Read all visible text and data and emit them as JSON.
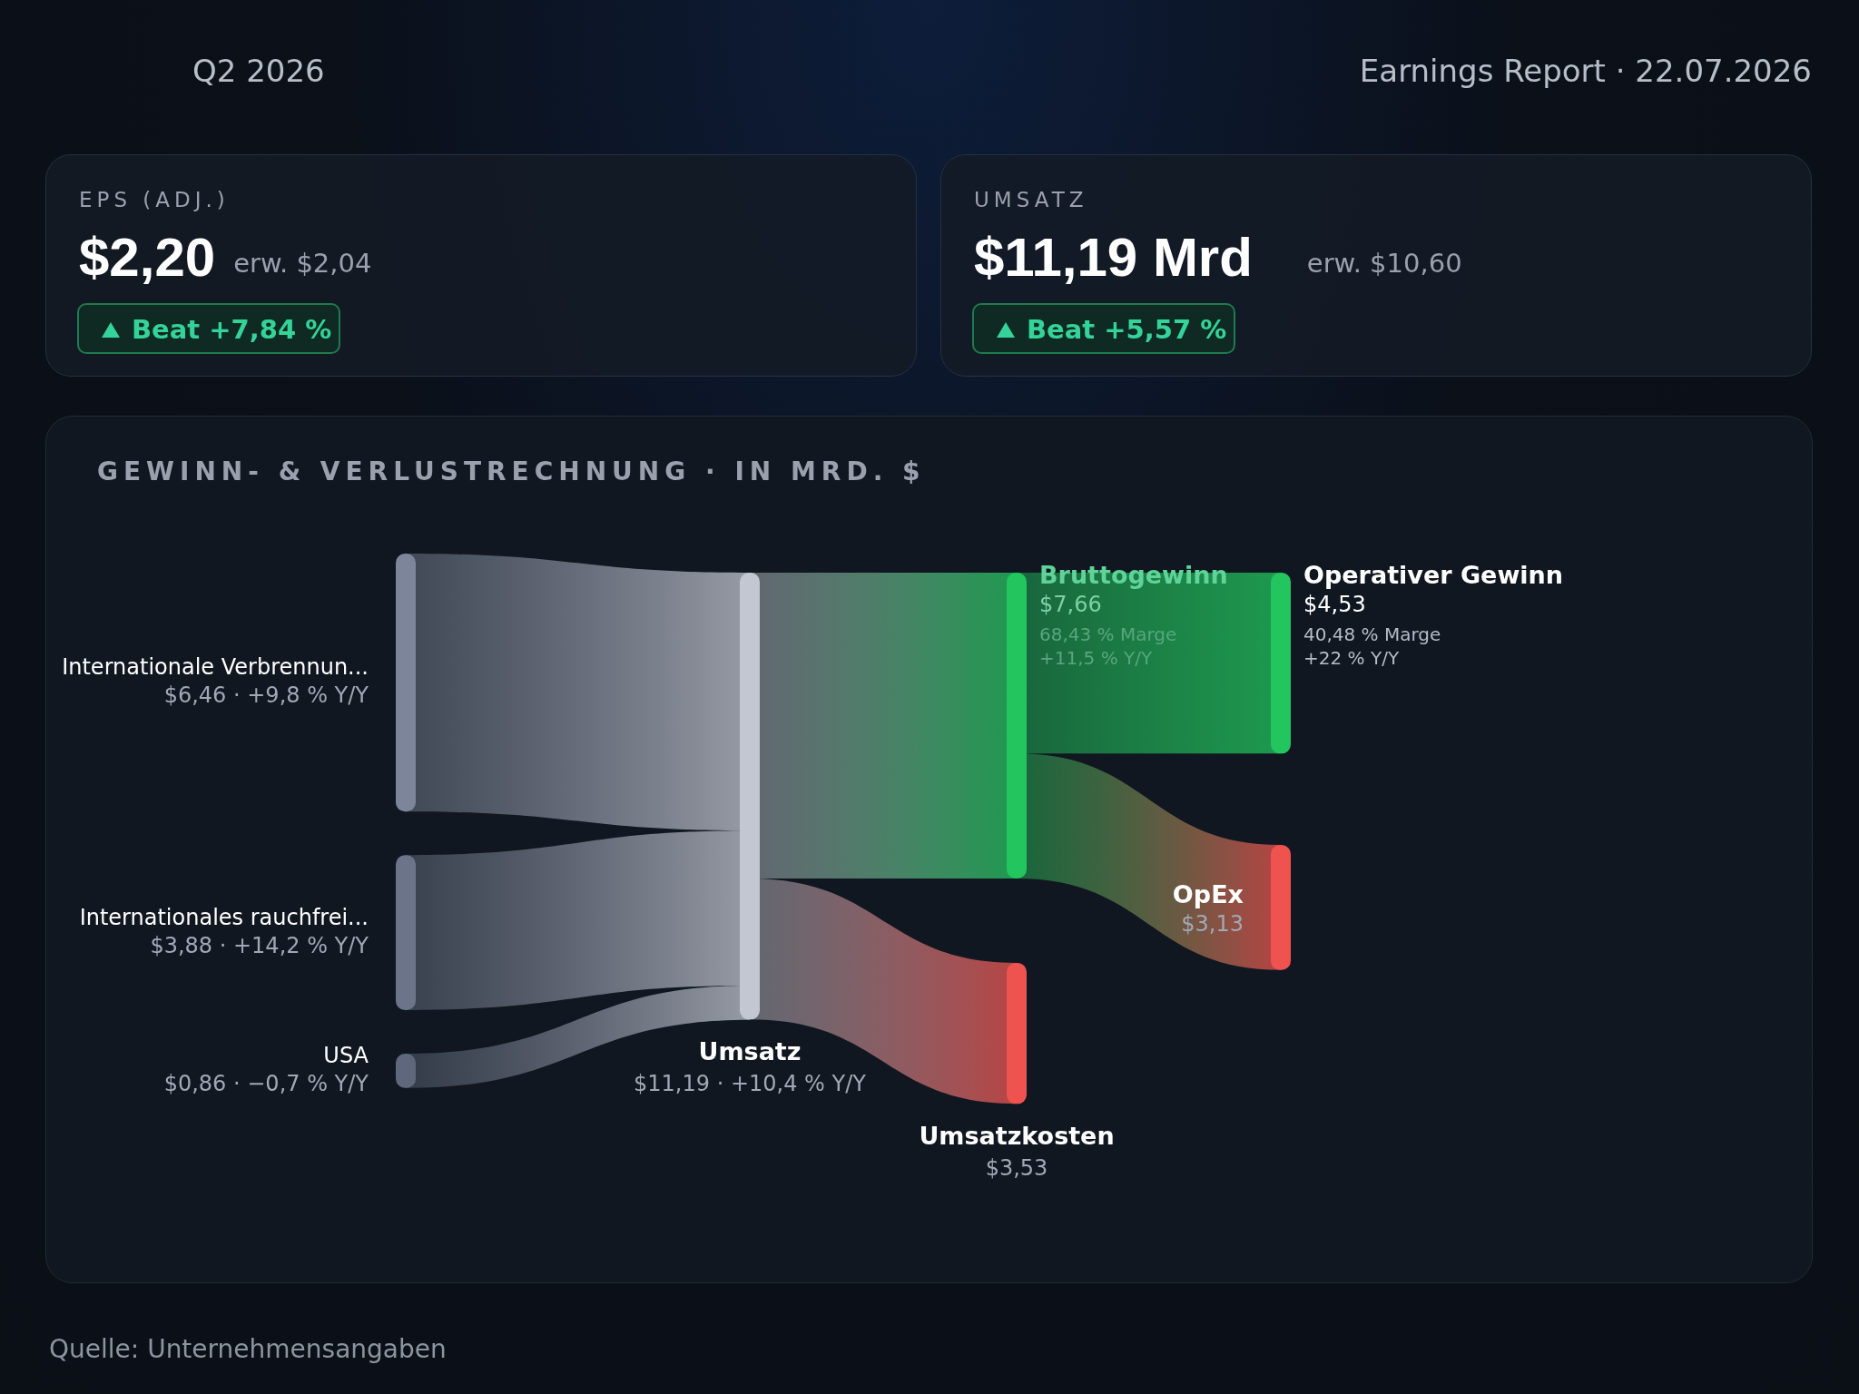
{
  "chart_data": [
    {
      "type": "other",
      "title": "EPS (ADJ.)",
      "annotations": [
        "$2,20",
        "erw. $2,04",
        "Beat +7,84 %"
      ]
    },
    {
      "type": "other",
      "title": "UMSATZ",
      "annotations": [
        "$11,19 Mrd",
        "erw. $10,60",
        "Beat +5,57 %"
      ]
    },
    {
      "type": "other",
      "title": "GEWINN- & VERLUSTRECHNUNG · IN MRD. $",
      "categories": [
        "Internationale Verbrennun...",
        "Internationales rauchfrei...",
        "USA",
        "Umsatz",
        "Bruttogewinn",
        "Umsatzkosten",
        "Operativer Gewinn",
        "OpEx"
      ],
      "values": [
        6.46,
        3.88,
        0.86,
        11.19,
        7.66,
        3.53,
        4.53,
        3.13
      ],
      "value_labels": [
        "$6,46 · +9,8 % Y/Y",
        "$3,88 · +14,2 % Y/Y",
        "$0,86 · −0,7 % Y/Y",
        "$11,19 · +10,4 % Y/Y",
        "$7,66",
        "$3,53",
        "$4,53",
        "$3,13"
      ],
      "colors": [
        "#7c8599",
        "#6b7489",
        "#5e677c",
        "#c3c7d1",
        "#22c55e",
        "#ef5350",
        "#22c55e",
        "#ef5350"
      ],
      "annotations": [
        "68,43 % Marge",
        "+11,5 % Y/Y",
        "40,48 % Marge",
        "+22 % Y/Y",
        "Q2 2026",
        "Earnings Report · 22.07.2026",
        "Quelle: Unternehmensangaben"
      ]
    }
  ]
}
